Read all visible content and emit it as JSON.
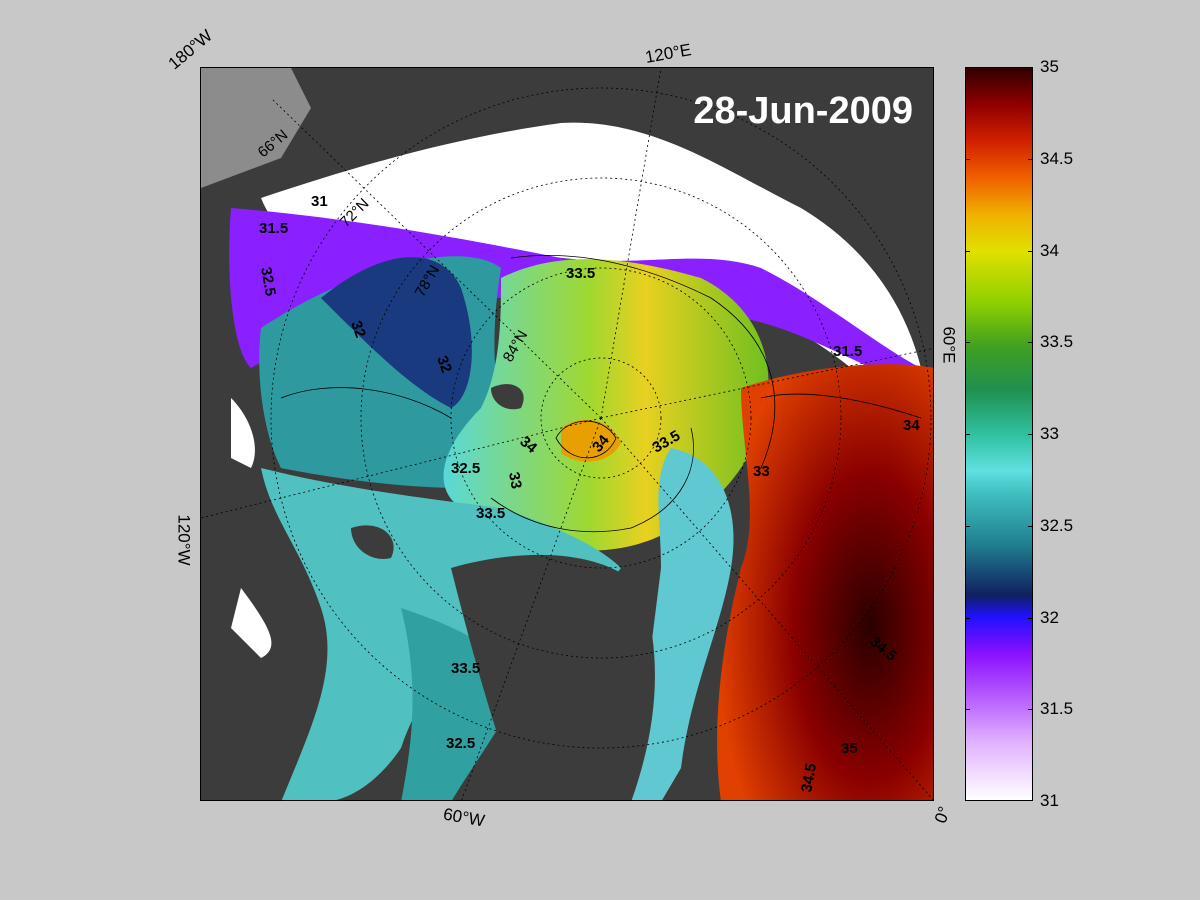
{
  "title": "28-Jun-2009",
  "longitude_labels": {
    "top_left": "180°W",
    "top_center": "120°E",
    "right_middle": "60°E",
    "left_middle": "120°W",
    "bottom_center": "60°W",
    "bottom_right": "0°"
  },
  "latitude_labels": [
    "66°N",
    "72°N",
    "78°N",
    "84°N"
  ],
  "contour_labels": [
    "31",
    "31.5",
    "32",
    "32.5",
    "33",
    "33.5",
    "34",
    "34.5",
    "35"
  ],
  "colorbar": {
    "min": 31,
    "max": 35,
    "ticks": [
      "35",
      "34.5",
      "34",
      "33.5",
      "33",
      "32.5",
      "32",
      "31.5",
      "31"
    ]
  },
  "colors": {
    "background": "#c8c8c8",
    "land": "#3c3c3c",
    "ice": "#ffffff",
    "fresh": "#9b30ff",
    "salty": "#3a0000"
  }
}
